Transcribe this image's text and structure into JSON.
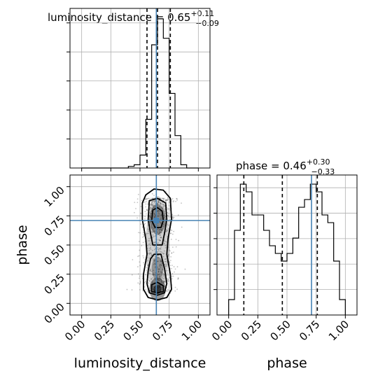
{
  "chart_data": {
    "type": "corner",
    "parameters": [
      "luminosity_distance",
      "phase"
    ],
    "titles": {
      "luminosity_distance": {
        "name": "luminosity_distance",
        "median": "0.65",
        "plus": "+0.11",
        "minus": "−0.09"
      },
      "phase": {
        "name": "phase",
        "median": "0.46",
        "plus": "+0.30",
        "minus": "−0.33"
      }
    },
    "axes": {
      "luminosity_distance": {
        "label": "luminosity_distance",
        "range": [
          -0.1,
          1.1
        ],
        "ticks": [
          "0.00",
          "0.25",
          "0.50",
          "0.75",
          "1.00"
        ],
        "tick_values": [
          0,
          0.25,
          0.5,
          0.75,
          1.0
        ]
      },
      "phase": {
        "label": "phase",
        "range": [
          -0.1,
          1.1
        ],
        "ticks": [
          "0.00",
          "0.25",
          "0.50",
          "0.75",
          "1.00"
        ],
        "tick_values": [
          0,
          0.25,
          0.5,
          0.75,
          1.0
        ]
      }
    },
    "truth": {
      "luminosity_distance": 0.64,
      "phase": 0.71
    },
    "quantiles": {
      "luminosity_distance": [
        0.56,
        0.65,
        0.76
      ],
      "phase": [
        0.13,
        0.46,
        0.76
      ]
    },
    "histograms": {
      "luminosity_distance": {
        "bin_edges": [
          0.0,
          0.05,
          0.1,
          0.15,
          0.2,
          0.25,
          0.3,
          0.35,
          0.4,
          0.45,
          0.5,
          0.55,
          0.6,
          0.65,
          0.7,
          0.75,
          0.8,
          0.85,
          0.9,
          0.95,
          1.0
        ],
        "counts": [
          0,
          0,
          0,
          0,
          0,
          0,
          0,
          0,
          0.5,
          1,
          4,
          15,
          38,
          46,
          40,
          23,
          10,
          1,
          0,
          0
        ]
      },
      "phase": {
        "bin_edges": [
          0.0,
          0.05,
          0.1,
          0.15,
          0.2,
          0.25,
          0.3,
          0.35,
          0.4,
          0.45,
          0.5,
          0.55,
          0.6,
          0.65,
          0.7,
          0.75,
          0.8,
          0.85,
          0.9,
          0.95,
          1.0
        ],
        "counts": [
          2,
          11,
          17,
          16,
          13,
          13,
          11,
          9,
          8,
          7,
          8,
          10,
          14,
          15,
          17,
          16,
          13,
          12,
          7,
          2
        ]
      }
    },
    "grid": true
  }
}
